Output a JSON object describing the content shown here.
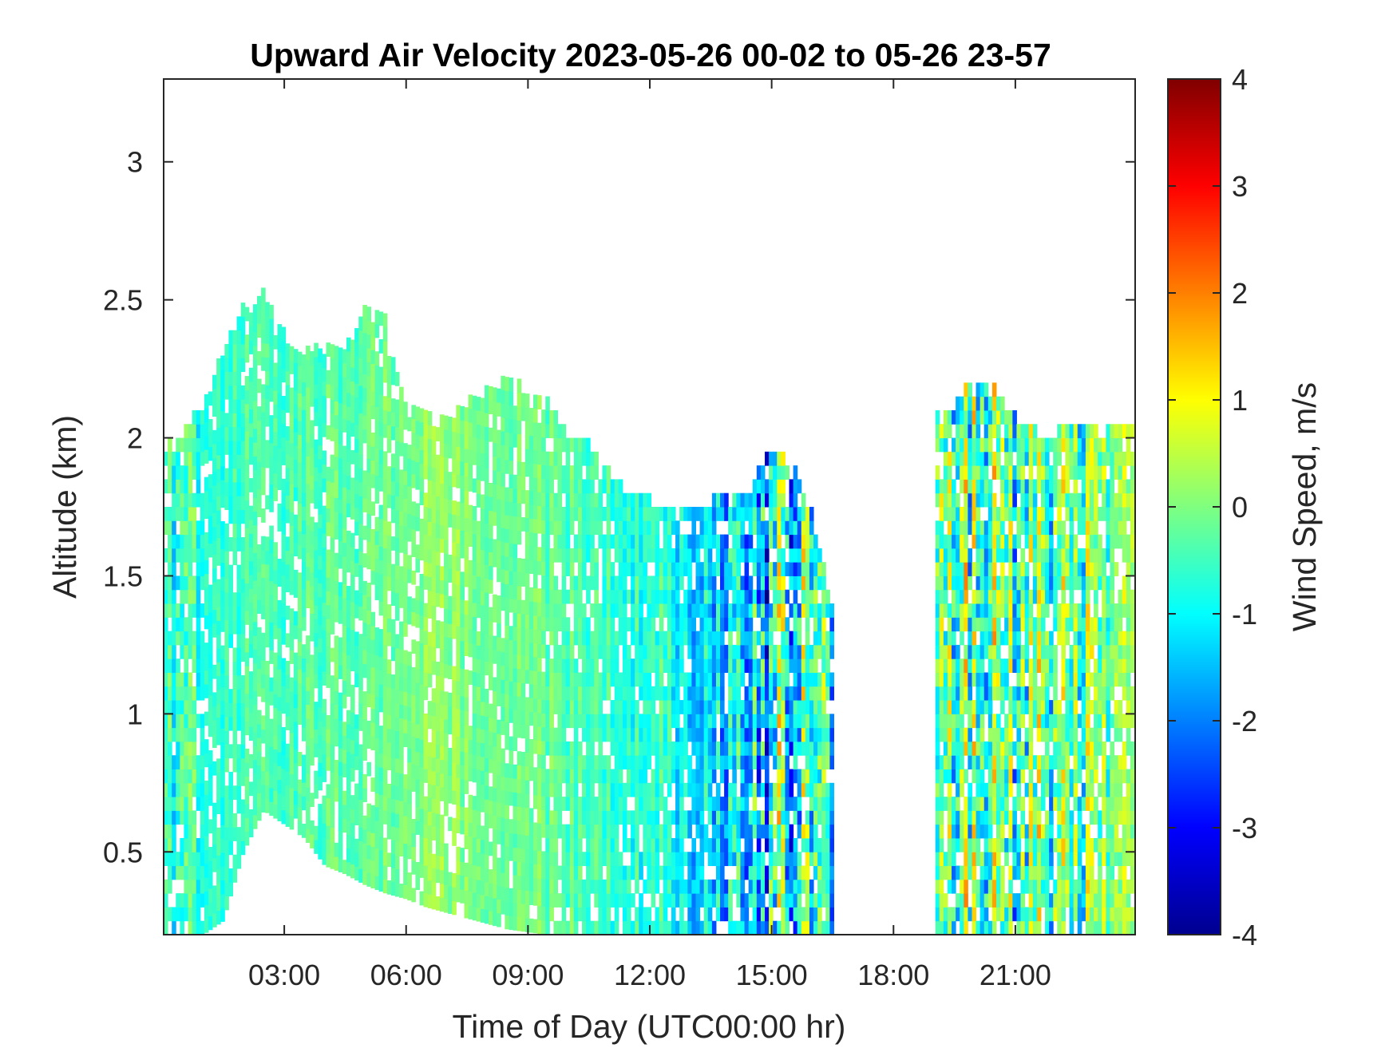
{
  "chart_data": {
    "type": "heatmap",
    "title": "Upward Air Velocity 2023-05-26 00-02 to 05-26 23-57",
    "xlabel": "Time of Day (UTC00:00 hr)",
    "ylabel": "Altitude (km)",
    "xlim": [
      0.03,
      23.95
    ],
    "ylim": [
      0.2,
      3.3
    ],
    "x_ticks": [
      {
        "value": 3,
        "label": "03:00"
      },
      {
        "value": 6,
        "label": "06:00"
      },
      {
        "value": 9,
        "label": "09:00"
      },
      {
        "value": 12,
        "label": "12:00"
      },
      {
        "value": 15,
        "label": "15:00"
      },
      {
        "value": 18,
        "label": "18:00"
      },
      {
        "value": 21,
        "label": "21:00"
      }
    ],
    "y_ticks": [
      {
        "value": 0.5,
        "label": "0.5"
      },
      {
        "value": 1,
        "label": "1"
      },
      {
        "value": 1.5,
        "label": "1.5"
      },
      {
        "value": 2,
        "label": "2"
      },
      {
        "value": 2.5,
        "label": "2.5"
      },
      {
        "value": 3,
        "label": "3"
      }
    ],
    "colorbar": {
      "label": "Wind Speed, m/s",
      "colormap": "jet",
      "clim": [
        -4,
        4
      ],
      "ticks": [
        {
          "value": 4,
          "label": "4"
        },
        {
          "value": 3,
          "label": "3"
        },
        {
          "value": 2,
          "label": "2"
        },
        {
          "value": 1,
          "label": "1"
        },
        {
          "value": 0,
          "label": "0"
        },
        {
          "value": -1,
          "label": "-1"
        },
        {
          "value": -2,
          "label": "-2"
        },
        {
          "value": -3,
          "label": "-3"
        },
        {
          "value": -4,
          "label": "-4"
        }
      ]
    },
    "profile": {
      "time_hr": [
        0.03,
        0.5,
        1.0,
        1.5,
        2.0,
        2.5,
        3.0,
        3.5,
        4.0,
        4.5,
        5.0,
        5.5,
        6.0,
        6.5,
        7.0,
        7.5,
        8.0,
        8.5,
        9.0,
        9.5,
        10.0,
        10.5,
        11.0,
        11.5,
        12.0,
        12.5,
        13.0,
        13.5,
        14.0,
        14.5,
        15.0,
        15.5,
        16.0,
        16.5,
        17.0,
        17.5,
        18.0,
        18.5,
        19.0,
        19.5,
        20.0,
        20.5,
        21.0,
        21.5,
        22.0,
        22.5,
        23.0,
        23.5,
        23.95
      ],
      "echo_top_km": [
        2.0,
        2.0,
        2.1,
        2.3,
        2.45,
        2.5,
        2.35,
        2.3,
        2.3,
        2.3,
        2.45,
        2.4,
        2.1,
        2.1,
        2.05,
        2.1,
        2.15,
        2.2,
        2.15,
        2.1,
        2.0,
        1.95,
        1.85,
        1.78,
        1.75,
        1.73,
        1.72,
        1.75,
        1.78,
        1.8,
        1.95,
        1.88,
        1.7,
        1.35,
        null,
        null,
        null,
        null,
        2.05,
        2.1,
        2.2,
        2.15,
        2.05,
        2.0,
        2.0,
        2.05,
        2.05,
        2.05,
        2.05
      ],
      "echo_base_km": [
        0.2,
        0.2,
        0.2,
        0.25,
        0.5,
        0.65,
        0.6,
        0.55,
        0.45,
        0.42,
        0.38,
        0.35,
        0.33,
        0.3,
        0.28,
        0.26,
        0.24,
        0.22,
        0.21,
        0.2,
        0.2,
        0.2,
        0.2,
        0.2,
        0.2,
        0.2,
        0.2,
        0.2,
        0.2,
        0.2,
        0.2,
        0.2,
        0.2,
        0.2,
        null,
        null,
        null,
        null,
        0.2,
        0.2,
        0.2,
        0.2,
        0.2,
        0.2,
        0.2,
        0.2,
        0.2,
        0.2,
        0.2
      ],
      "mean_velocity_ms": [
        -0.7,
        -0.8,
        -0.7,
        -0.6,
        -0.5,
        -0.5,
        -0.5,
        -0.4,
        -0.3,
        -0.3,
        -0.2,
        -0.1,
        0.0,
        0.1,
        0.1,
        0.0,
        0.0,
        -0.1,
        -0.1,
        -0.2,
        -0.3,
        -0.4,
        -0.5,
        -0.6,
        -0.8,
        -0.9,
        -1.2,
        -1.4,
        -1.5,
        -1.6,
        -1.2,
        -1.0,
        -0.9,
        -1.0,
        null,
        null,
        null,
        null,
        -0.6,
        -0.4,
        -0.3,
        -0.3,
        -0.4,
        -0.3,
        -0.2,
        -0.2,
        -0.2,
        -0.1,
        0.0
      ],
      "variability_ms": [
        1.0,
        1.5,
        0.6,
        0.5,
        0.5,
        0.5,
        0.5,
        0.5,
        0.5,
        0.5,
        0.5,
        0.5,
        0.5,
        0.5,
        0.5,
        0.5,
        0.5,
        0.5,
        0.5,
        0.5,
        0.5,
        0.6,
        0.6,
        0.7,
        0.8,
        0.9,
        1.0,
        1.2,
        1.6,
        2.0,
        2.8,
        2.8,
        2.5,
        1.5,
        null,
        null,
        null,
        null,
        2.0,
        2.5,
        2.5,
        2.2,
        2.2,
        2.0,
        2.0,
        1.8,
        1.5,
        1.2,
        1.0
      ]
    },
    "grid": false
  }
}
